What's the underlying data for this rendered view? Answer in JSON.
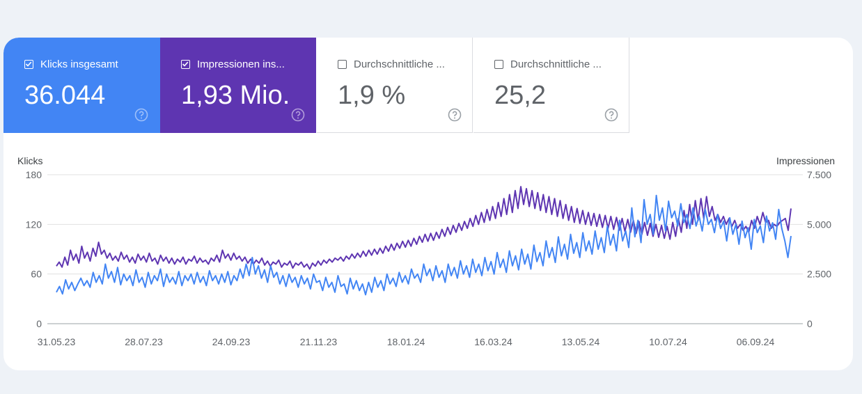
{
  "metrics": [
    {
      "label": "Klicks insgesamt",
      "value": "36.044",
      "checked": true,
      "color": "#4285f4"
    },
    {
      "label": "Impressionen ins...",
      "value": "1,93 Mio.",
      "checked": true,
      "color": "#5e35b1"
    },
    {
      "label": "Durchschnittliche ...",
      "value": "1,9 %",
      "checked": false
    },
    {
      "label": "Durchschnittliche ...",
      "value": "25,2",
      "checked": false
    }
  ],
  "help_icon": "question-circle-icon",
  "checkbox_icon": "checkbox-icon",
  "chart_data": {
    "type": "line",
    "ylabel": "Klicks",
    "y2label": "Impressionen",
    "yticks": [
      "0",
      "60",
      "120",
      "180"
    ],
    "y2ticks": [
      "0",
      "2.500",
      "5.000",
      "7.500"
    ],
    "ylim": [
      0,
      180
    ],
    "y2lim": [
      0,
      7500
    ],
    "xtick_labels": [
      "31.05.23",
      "28.07.23",
      "24.09.23",
      "21.11.23",
      "18.01.24",
      "16.03.24",
      "13.05.24",
      "10.07.24",
      "06.09.24"
    ],
    "grid": true,
    "series": [
      {
        "name": "Klicks",
        "axis": "left",
        "color": "#4285f4",
        "values": [
          38,
          45,
          36,
          53,
          42,
          50,
          40,
          48,
          55,
          46,
          52,
          44,
          62,
          50,
          58,
          48,
          72,
          55,
          63,
          50,
          68,
          47,
          60,
          52,
          58,
          46,
          65,
          50,
          56,
          44,
          62,
          48,
          58,
          52,
          66,
          45,
          60,
          50,
          56,
          48,
          63,
          46,
          58,
          52,
          60,
          48,
          62,
          50,
          57,
          46,
          64,
          52,
          58,
          48,
          60,
          50,
          63,
          47,
          58,
          52,
          66,
          55,
          72,
          58,
          80,
          60,
          70,
          55,
          65,
          50,
          70,
          56,
          62,
          48,
          58,
          45,
          60,
          50,
          56,
          44,
          58,
          48,
          55,
          42,
          60,
          50,
          52,
          40,
          56,
          44,
          50,
          38,
          58,
          45,
          48,
          36,
          55,
          42,
          52,
          40,
          48,
          35,
          50,
          38,
          56,
          44,
          52,
          40,
          60,
          48,
          55,
          45,
          62,
          50,
          58,
          48,
          66,
          55,
          60,
          50,
          72,
          58,
          66,
          52,
          70,
          56,
          64,
          50,
          72,
          58,
          68,
          55,
          76,
          60,
          70,
          56,
          78,
          62,
          72,
          58,
          80,
          64,
          75,
          60,
          86,
          68,
          78,
          62,
          88,
          70,
          82,
          65,
          90,
          72,
          84,
          66,
          95,
          75,
          86,
          70,
          100,
          80,
          92,
          74,
          105,
          82,
          96,
          78,
          108,
          85,
          98,
          80,
          110,
          88,
          100,
          84,
          112,
          90,
          104,
          86,
          118,
          95,
          108,
          88,
          125,
          100,
          112,
          92,
          140,
          105,
          125,
          98,
          150,
          120,
          132,
          108,
          155,
          125,
          140,
          112,
          148,
          128,
          136,
          118,
          145,
          122,
          132,
          115,
          140,
          118,
          130,
          112,
          138,
          120,
          126,
          110,
          132,
          115,
          124,
          100,
          128,
          108,
          120,
          96,
          124,
          104,
          116,
          90,
          126,
          110,
          118,
          98,
          130,
          112,
          122,
          102,
          138,
          115,
          100,
          80,
          106
        ],
        "_note": "sampled every ~2 days, 2023-05-31 to 2024-09-24"
      },
      {
        "name": "Impressionen",
        "axis": "right",
        "color": "#5e35b1",
        "values": [
          2900,
          3100,
          2850,
          3350,
          2950,
          3700,
          3200,
          3500,
          3050,
          3900,
          3300,
          3600,
          3150,
          3800,
          3400,
          4100,
          3500,
          3700,
          3300,
          3550,
          3200,
          3400,
          3150,
          3600,
          3250,
          3450,
          3100,
          3350,
          3050,
          3500,
          3200,
          3400,
          3100,
          3550,
          3150,
          3300,
          3000,
          3450,
          3150,
          3350,
          3050,
          3300,
          3000,
          3250,
          3100,
          3350,
          3000,
          3250,
          3150,
          3400,
          3050,
          3300,
          3100,
          3200,
          3000,
          3300,
          3150,
          3450,
          3100,
          3700,
          3300,
          3500,
          3200,
          3550,
          3250,
          3400,
          3150,
          3350,
          3050,
          3250,
          3000,
          3200,
          3050,
          3300,
          2950,
          3150,
          2900,
          3100,
          3000,
          3200,
          2850,
          3050,
          2950,
          3150,
          2800,
          3050,
          2950,
          3100,
          2850,
          3000,
          2750,
          3050,
          2900,
          3150,
          2950,
          3200,
          3050,
          3250,
          3100,
          3300,
          3200,
          3350,
          3150,
          3400,
          3250,
          3500,
          3300,
          3550,
          3350,
          3650,
          3400,
          3700,
          3450,
          3750,
          3500,
          3800,
          3550,
          3900,
          3650,
          4000,
          3700,
          4050,
          3800,
          4150,
          3850,
          4200,
          3900,
          4300,
          4000,
          4400,
          4100,
          4500,
          4150,
          4550,
          4200,
          4600,
          4300,
          4750,
          4400,
          4850,
          4500,
          4950,
          4600,
          5050,
          4700,
          5150,
          4800,
          5300,
          4900,
          5450,
          5000,
          5600,
          5100,
          5750,
          5200,
          5900,
          5300,
          6100,
          5400,
          6300,
          5500,
          6500,
          5600,
          6700,
          5800,
          6900,
          6000,
          6800,
          5900,
          6700,
          5800,
          6600,
          5700,
          6500,
          5600,
          6400,
          5500,
          6300,
          5400,
          6200,
          5300,
          6000,
          5200,
          5900,
          5100,
          5800,
          5050,
          5700,
          5000,
          5600,
          4950,
          5550,
          4900,
          5500,
          4850,
          5450,
          4800,
          5400,
          4750,
          5350,
          4700,
          5300,
          4650,
          5250,
          4600,
          5200,
          4550,
          5150,
          4500,
          5100,
          4450,
          5050,
          4400,
          5000,
          4350,
          4950,
          4300,
          4900,
          4250,
          5100,
          4400,
          5300,
          4600,
          5700,
          4800,
          6000,
          5000,
          6200,
          5200,
          6300,
          5300,
          6400,
          5400,
          5900,
          5200,
          5500,
          5100,
          5400,
          5000,
          5300,
          4900,
          5200,
          4800,
          5000,
          4700,
          4900,
          4600,
          5200,
          4800,
          5400,
          5000,
          5600,
          5100,
          5200,
          4800,
          5000,
          4900,
          5100,
          5200,
          5300,
          4700,
          5800
        ]
      }
    ]
  }
}
